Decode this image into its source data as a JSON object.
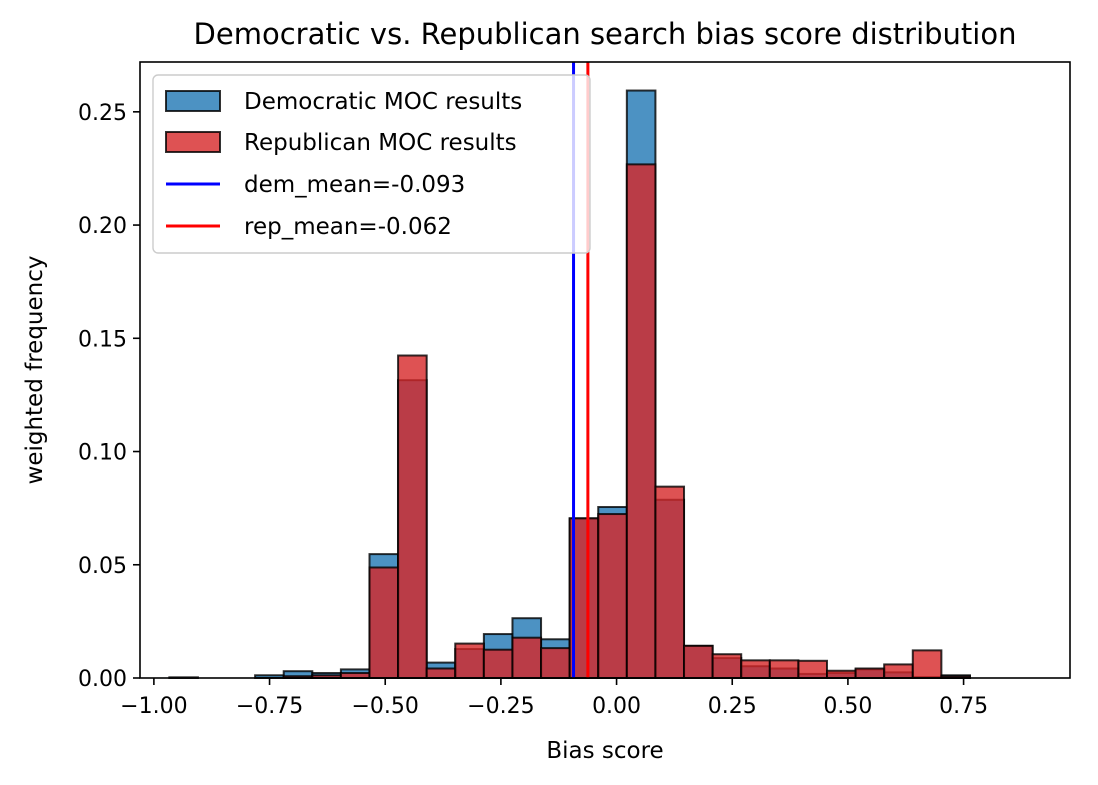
{
  "chart_data": {
    "type": "histogram",
    "title": "Democratic vs. Republican search bias score distribution",
    "xlabel": "Bias score",
    "ylabel": "weighted frequency",
    "xlim": [
      -1.03,
      0.98
    ],
    "ylim": [
      0,
      0.272
    ],
    "x_ticks": [
      {
        "value": -1.0,
        "label": "−1.00"
      },
      {
        "value": -0.75,
        "label": "−0.75"
      },
      {
        "value": -0.5,
        "label": "−0.50"
      },
      {
        "value": -0.25,
        "label": "−0.25"
      },
      {
        "value": 0.0,
        "label": "0.00"
      },
      {
        "value": 0.25,
        "label": "0.25"
      },
      {
        "value": 0.5,
        "label": "0.50"
      },
      {
        "value": 0.75,
        "label": "0.75"
      }
    ],
    "y_ticks": [
      {
        "value": 0.0,
        "label": "0.00"
      },
      {
        "value": 0.05,
        "label": "0.05"
      },
      {
        "value": 0.1,
        "label": "0.10"
      },
      {
        "value": 0.15,
        "label": "0.15"
      },
      {
        "value": 0.2,
        "label": "0.20"
      },
      {
        "value": 0.25,
        "label": "0.25"
      }
    ],
    "bin_edges": [
      -0.9666,
      -0.9048,
      -0.843,
      -0.7812,
      -0.7194,
      -0.6576,
      -0.5958,
      -0.534,
      -0.4722,
      -0.4104,
      -0.3486,
      -0.2868,
      -0.225,
      -0.1632,
      -0.1014,
      -0.0396,
      0.0222,
      0.084,
      0.1458,
      0.2076,
      0.2694,
      0.3312,
      0.393,
      0.4548,
      0.5166,
      0.5784,
      0.6402,
      0.702,
      0.7638
    ],
    "series": [
      {
        "name": "Democratic MOC results",
        "color": "#1f77b4",
        "values": [
          0.0003,
          0.0,
          0.0,
          0.0012,
          0.003,
          0.0022,
          0.0038,
          0.0547,
          0.1315,
          0.0068,
          0.0128,
          0.0194,
          0.0264,
          0.0171,
          0.0705,
          0.0755,
          0.2594,
          0.0787,
          0.0142,
          0.0088,
          0.0052,
          0.0042,
          0.0018,
          0.0022,
          0.0038,
          0.0025,
          0.0004,
          0.0012
        ]
      },
      {
        "name": "Republican MOC results",
        "color": "#d62728",
        "values": [
          0.0,
          0.0,
          0.0,
          0.0,
          0.0008,
          0.0012,
          0.0022,
          0.0488,
          0.1424,
          0.0042,
          0.0152,
          0.0125,
          0.0178,
          0.0132,
          0.0705,
          0.0724,
          0.2268,
          0.0845,
          0.0142,
          0.0105,
          0.0078,
          0.0078,
          0.0076,
          0.0032,
          0.0042,
          0.006,
          0.0122,
          0.0008
        ]
      }
    ],
    "vlines": [
      {
        "name": "dem_mean=-0.093",
        "x": -0.093,
        "color": "#0000ff"
      },
      {
        "name": "rep_mean=-0.062",
        "x": -0.062,
        "color": "#ff0000"
      }
    ],
    "legend": {
      "position": "upper left"
    },
    "grid": false
  }
}
